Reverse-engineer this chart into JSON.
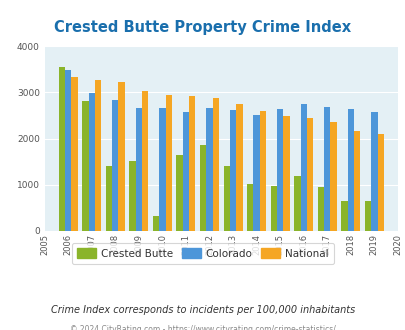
{
  "title": "Crested Butte Property Crime Index",
  "years": [
    2005,
    2006,
    2007,
    2008,
    2009,
    2010,
    2011,
    2012,
    2013,
    2014,
    2015,
    2016,
    2017,
    2018,
    2019,
    2020
  ],
  "crested_butte": [
    null,
    3550,
    2820,
    1400,
    1510,
    320,
    1640,
    1870,
    1400,
    1010,
    980,
    1200,
    950,
    660,
    640,
    null
  ],
  "colorado": [
    null,
    3480,
    2980,
    2840,
    2660,
    2660,
    2580,
    2660,
    2620,
    2520,
    2630,
    2750,
    2680,
    2650,
    2580,
    null
  ],
  "national": [
    null,
    3340,
    3270,
    3220,
    3040,
    2950,
    2930,
    2870,
    2750,
    2590,
    2490,
    2450,
    2370,
    2170,
    2100,
    null
  ],
  "bar_width": 0.27,
  "crested_butte_color": "#8ab42a",
  "colorado_color": "#4d96d9",
  "national_color": "#f5a623",
  "plot_bg": "#e4f0f5",
  "title_color": "#1a6fad",
  "ylim": [
    0,
    4000
  ],
  "yticks": [
    0,
    1000,
    2000,
    3000,
    4000
  ],
  "footer_text": "Crime Index corresponds to incidents per 100,000 inhabitants",
  "copyright_text": "© 2024 CityRating.com - https://www.cityrating.com/crime-statistics/",
  "legend_labels": [
    "Crested Butte",
    "Colorado",
    "National"
  ]
}
